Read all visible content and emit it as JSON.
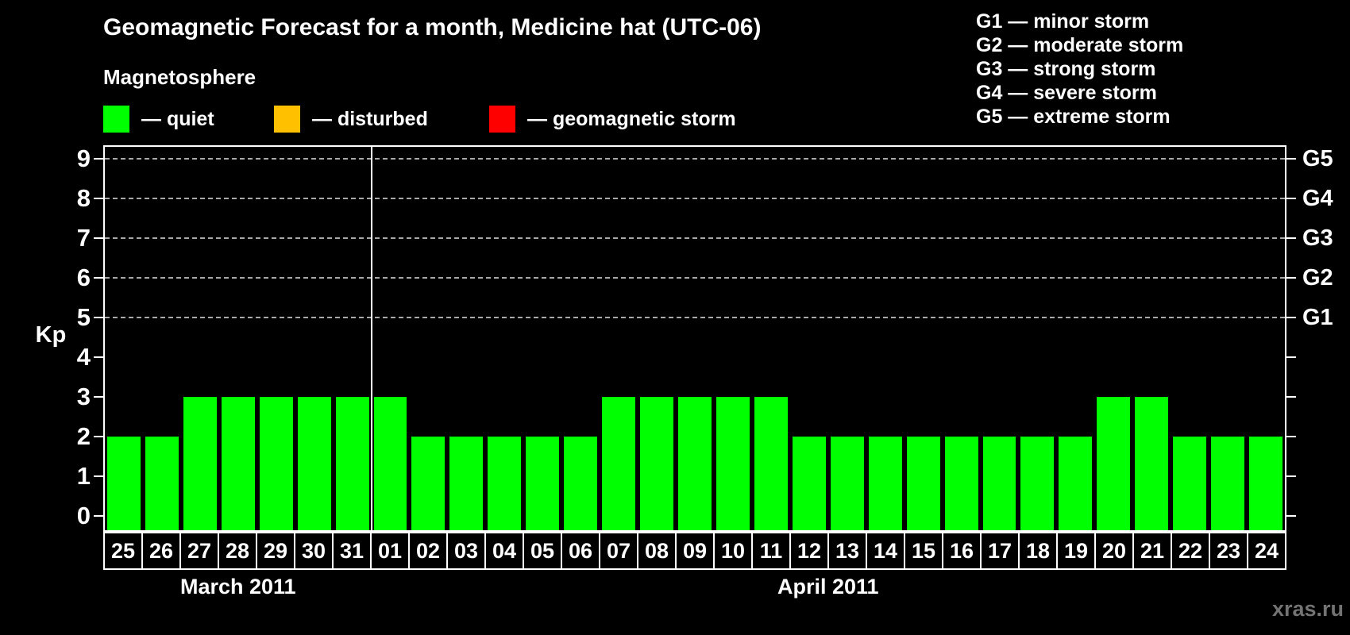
{
  "title": "Geomagnetic Forecast for a month, Medicine hat (UTC-06)",
  "magnetosphere_label": "Magnetosphere",
  "legend": {
    "items": [
      {
        "name": "quiet",
        "color": "#00ff00",
        "label": "— quiet"
      },
      {
        "name": "disturbed",
        "color": "#ffc000",
        "label": "— disturbed"
      },
      {
        "name": "geomagnetic-storm",
        "color": "#ff0000",
        "label": "— geomagnetic storm"
      }
    ]
  },
  "storm_scale_legend": [
    "G1 — minor storm",
    "G2 — moderate storm",
    "G3 — strong storm",
    "G4 — severe storm",
    "G5 — extreme storm"
  ],
  "watermark": "xras.ru",
  "chart_data": {
    "type": "bar",
    "ylabel": "Kp",
    "ylim": [
      0,
      9
    ],
    "y_ticks": [
      0,
      1,
      2,
      3,
      4,
      5,
      6,
      7,
      8,
      9
    ],
    "gridlines_at": [
      5,
      6,
      7,
      8,
      9
    ],
    "grid": "dashed horizontal at storm levels only",
    "right_axis_labels": [
      {
        "label": "G1",
        "kp": 5
      },
      {
        "label": "G2",
        "kp": 6
      },
      {
        "label": "G3",
        "kp": 7
      },
      {
        "label": "G4",
        "kp": 8
      },
      {
        "label": "G5",
        "kp": 9
      }
    ],
    "bar_colors": {
      "quiet": "#00ff00",
      "disturbed": "#ffc000",
      "storm": "#ff0000"
    },
    "months": [
      {
        "label": "March 2011",
        "days": 7
      },
      {
        "label": "April 2011",
        "days": 24
      }
    ],
    "categories": [
      "25",
      "26",
      "27",
      "28",
      "29",
      "30",
      "31",
      "01",
      "02",
      "03",
      "04",
      "05",
      "06",
      "07",
      "08",
      "09",
      "10",
      "11",
      "12",
      "13",
      "14",
      "15",
      "16",
      "17",
      "18",
      "19",
      "20",
      "21",
      "22",
      "23",
      "24"
    ],
    "values": [
      2,
      2,
      3,
      3,
      3,
      3,
      3,
      3,
      2,
      2,
      2,
      2,
      2,
      3,
      3,
      3,
      3,
      3,
      2,
      2,
      2,
      2,
      2,
      2,
      2,
      2,
      3,
      3,
      2,
      2,
      2
    ]
  }
}
